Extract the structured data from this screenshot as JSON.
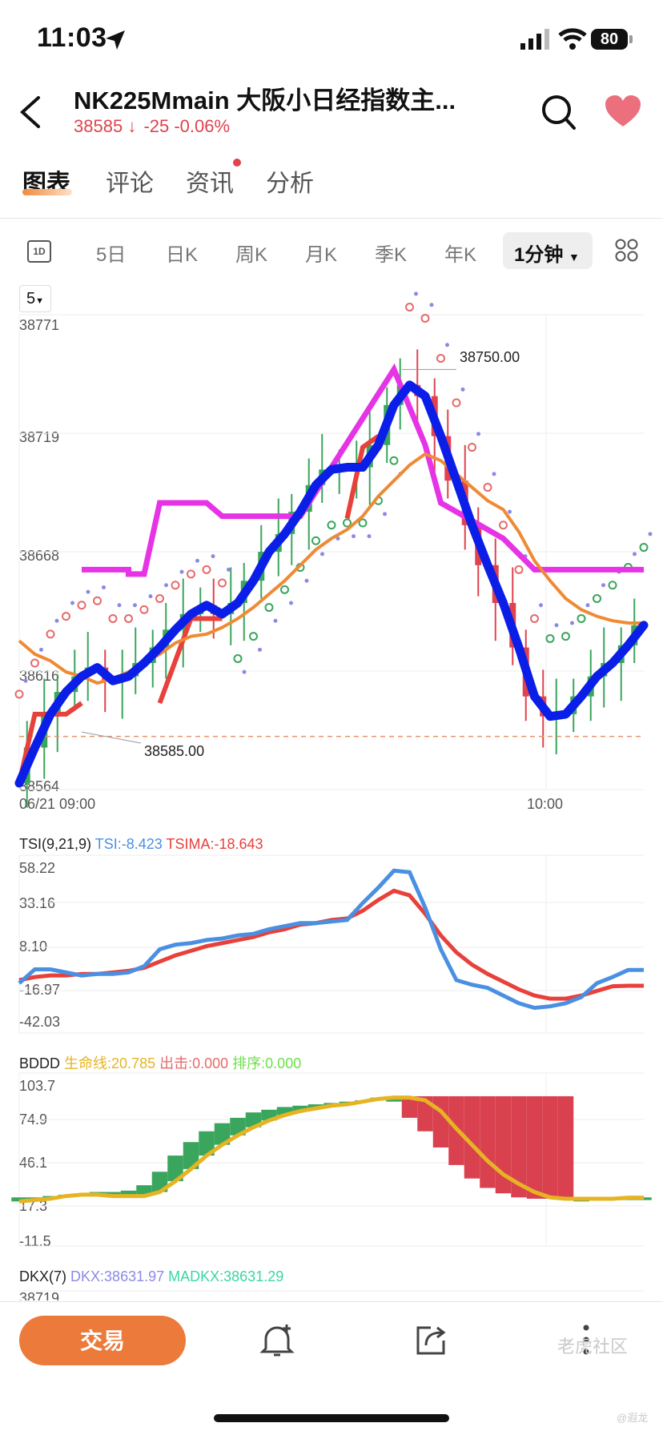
{
  "status_bar": {
    "time": "11:03",
    "battery": "80"
  },
  "header": {
    "title": "NK225Mmain  大阪小日经指数主...",
    "price": "38585",
    "change": "-25",
    "change_pct": "-0.06%",
    "icons": [
      "back-icon",
      "search-icon",
      "heart-icon"
    ]
  },
  "tabs": [
    "图表",
    "评论",
    "资讯",
    "分析"
  ],
  "periods": [
    "5日",
    "日K",
    "周K",
    "月K",
    "季K",
    "年K"
  ],
  "period_selected": "1分钟",
  "period_1d_label": "1D",
  "ma_select": "5",
  "main_chart": {
    "y_ticks": [
      "38771",
      "38719",
      "38668",
      "38616",
      "38564"
    ],
    "x_ticks": [
      "06/21 09:00",
      "10:00"
    ],
    "high_label": "38750.00",
    "low_label": "38585.00",
    "reference_price": 38585,
    "ylim": [
      38564,
      38771
    ],
    "colors": {
      "up": "#3aa55c",
      "down": "#e0424e",
      "blue": "#0a1ee8",
      "orange": "#ef8a34",
      "magenta": "#e633e6",
      "red_line": "#e8403a"
    }
  },
  "tsi": {
    "name": "TSI(9,21,9)",
    "tsi_label": "TSI:-8.423",
    "tsima_label": "TSIMA:-18.643",
    "y_ticks": [
      "58.22",
      "33.16",
      "8.10",
      "-16.97",
      "-42.03"
    ],
    "ylim": [
      -42.03,
      58.22
    ],
    "tsi_color": "#4a90e2",
    "tsima_color": "#e8403a"
  },
  "bddd": {
    "name": "BDDD",
    "life_label": "生命线:20.785",
    "attack_label": "出击:0.000",
    "sort_label": "排序:0.000",
    "y_ticks": [
      "103.7",
      "74.9",
      "46.1",
      "17.3",
      "-11.5"
    ],
    "ylim": [
      -11.5,
      103.7
    ],
    "life_color": "#e6b422",
    "attack_color": "#e66a6a",
    "sort_color": "#6ee04a"
  },
  "dkx": {
    "name": "DKX(7)",
    "dkx_label": "DKX:38631.97",
    "madkx_label": "MADKX:38631.29",
    "dkx_color": "#8a8ae6",
    "madkx_color": "#3ad6a6",
    "partial_tick": "38719"
  },
  "chart_data": [
    {
      "type": "line",
      "title": "",
      "x": [
        0,
        1,
        2,
        3,
        4,
        5,
        6,
        7,
        8,
        9,
        10,
        11,
        12,
        13,
        14,
        15,
        16,
        17,
        18,
        19,
        20,
        21,
        22,
        23,
        24,
        25,
        26,
        27,
        28,
        29,
        30,
        31,
        32,
        33,
        34,
        35,
        36,
        37,
        38,
        39,
        40
      ],
      "series": [
        {
          "values": [
            38564,
            38580,
            38595,
            38605,
            38612,
            38616,
            38610,
            38612,
            38618,
            38625,
            38633,
            38640,
            38644,
            38640,
            38645,
            38655,
            38668,
            38676,
            38686,
            38698,
            38705,
            38706,
            38706,
            38716,
            38734,
            38743,
            38738,
            38720,
            38700,
            38680,
            38662,
            38645,
            38625,
            38603,
            38594,
            38595,
            38603,
            38612,
            38618,
            38626,
            38635
          ]
        },
        {
          "values": [
            38628,
            38622,
            38619,
            38614,
            38612,
            38609,
            38611,
            38614,
            38618,
            38622,
            38627,
            38630,
            38631,
            38634,
            38638,
            38643,
            38649,
            38655,
            38662,
            38669,
            38674,
            38678,
            38684,
            38693,
            38700,
            38707,
            38712,
            38709,
            38703,
            38697,
            38691,
            38687,
            38677,
            38664,
            38655,
            38647,
            38642,
            38639,
            38637,
            38636,
            38636
          ]
        }
      ]
    },
    {
      "type": "line",
      "title": "",
      "x": [
        0,
        1,
        2,
        3,
        4,
        5,
        6,
        7,
        8,
        9,
        10,
        11,
        12,
        13,
        14,
        15,
        16,
        17,
        18,
        19,
        20,
        21,
        22,
        23,
        24,
        25,
        26,
        27,
        28,
        29,
        30,
        31,
        32,
        33,
        34,
        35,
        36,
        37,
        38,
        39,
        40
      ],
      "series": [
        {
          "name": "TSI",
          "values": [
            -17,
            -8,
            -8,
            -10,
            -12,
            -11,
            -11,
            -10,
            -6,
            5,
            8,
            9,
            11,
            12,
            14,
            15,
            18,
            20,
            22,
            22,
            23,
            24,
            35,
            45,
            56,
            55,
            32,
            5,
            -15,
            -18,
            -20,
            -25,
            -30,
            -33,
            -32,
            -30,
            -26,
            -17,
            -13,
            -8.423,
            -8.423
          ]
        },
        {
          "name": "TSIMA",
          "values": [
            -15,
            -13,
            -12,
            -12,
            -11,
            -11,
            -10,
            -9,
            -7,
            -3,
            1,
            4,
            7,
            9,
            11,
            13,
            16,
            18,
            21,
            22,
            24,
            25,
            30,
            37,
            43,
            40,
            28,
            14,
            3,
            -5,
            -11,
            -16,
            -21,
            -25,
            -27,
            -27,
            -25,
            -22,
            -19,
            -18.643,
            -18.643
          ]
        }
      ]
    },
    {
      "type": "area",
      "title": "",
      "x": [
        0,
        1,
        2,
        3,
        4,
        5,
        6,
        7,
        8,
        9,
        10,
        11,
        12,
        13,
        14,
        15,
        16,
        17,
        18,
        19,
        20,
        21,
        22,
        23,
        24,
        25,
        26,
        27,
        28,
        29,
        30,
        31,
        32,
        33,
        34,
        35,
        36,
        37,
        38,
        39,
        40
      ],
      "series": [
        {
          "name": "生命线",
          "values": [
            18,
            19,
            20,
            22,
            23,
            23,
            22,
            22,
            22,
            25,
            33,
            42,
            52,
            60,
            67,
            73,
            78,
            82,
            85,
            87,
            89,
            90,
            92,
            94,
            95,
            95,
            93,
            85,
            72,
            60,
            48,
            38,
            31,
            25,
            21,
            20,
            20,
            20,
            20,
            20.785,
            20.785
          ]
        },
        {
          "name": "bar-top",
          "values": [
            21,
            21,
            22,
            23,
            24,
            25,
            25,
            26,
            30,
            40,
            52,
            62,
            70,
            76,
            80,
            84,
            86,
            88,
            89,
            90,
            91,
            92,
            93,
            95,
            96,
            96,
            96,
            96,
            96,
            96,
            96,
            96,
            96,
            96,
            96,
            96,
            21,
            21,
            21,
            21,
            21
          ]
        },
        {
          "name": "bar-bottom",
          "values": [
            18,
            19,
            20,
            22,
            23,
            23,
            22,
            22,
            22,
            25,
            33,
            42,
            52,
            60,
            67,
            73,
            78,
            82,
            85,
            87,
            89,
            90,
            92,
            93,
            92,
            80,
            70,
            58,
            45,
            35,
            28,
            24,
            21,
            20,
            20,
            20,
            18,
            19,
            19,
            19,
            19
          ]
        },
        {
          "name": "排序",
          "values": [
            0,
            0,
            0,
            0,
            0,
            0,
            0,
            0,
            0,
            0,
            0,
            0,
            0,
            0,
            0,
            0,
            0,
            0,
            0,
            0,
            0,
            0,
            0,
            0,
            0,
            0,
            0,
            0,
            0,
            0,
            0,
            0,
            0,
            0,
            0,
            0,
            0,
            0,
            0,
            0,
            0
          ]
        }
      ]
    }
  ],
  "bottom_bar": {
    "trade_label": "交易",
    "icons": [
      "bell-plus-icon",
      "share-icon",
      "more-icon"
    ]
  },
  "watermark": {
    "text": "老虎社区",
    "sub": "@遐龙"
  }
}
